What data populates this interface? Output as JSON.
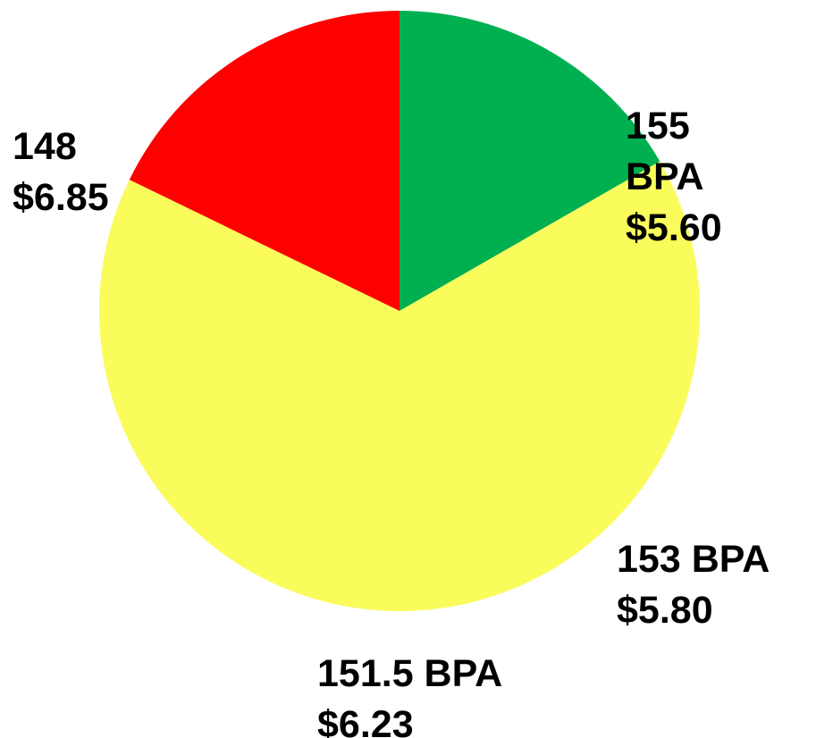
{
  "chart_data": {
    "type": "pie",
    "values": [
      16.7,
      65.5,
      17.8
    ],
    "colors": [
      "#00b050",
      "#f9fc5a",
      "#ff0000"
    ],
    "start_angle": 0,
    "annotations": [
      {
        "lines": [
          "155",
          "BPA",
          "$5.60"
        ]
      },
      {
        "lines": [
          "153 BPA",
          "$5.80"
        ]
      },
      {
        "lines": [
          "151.5 BPA",
          "$6.23"
        ]
      },
      {
        "lines": [
          "148",
          "$6.85"
        ]
      }
    ]
  }
}
